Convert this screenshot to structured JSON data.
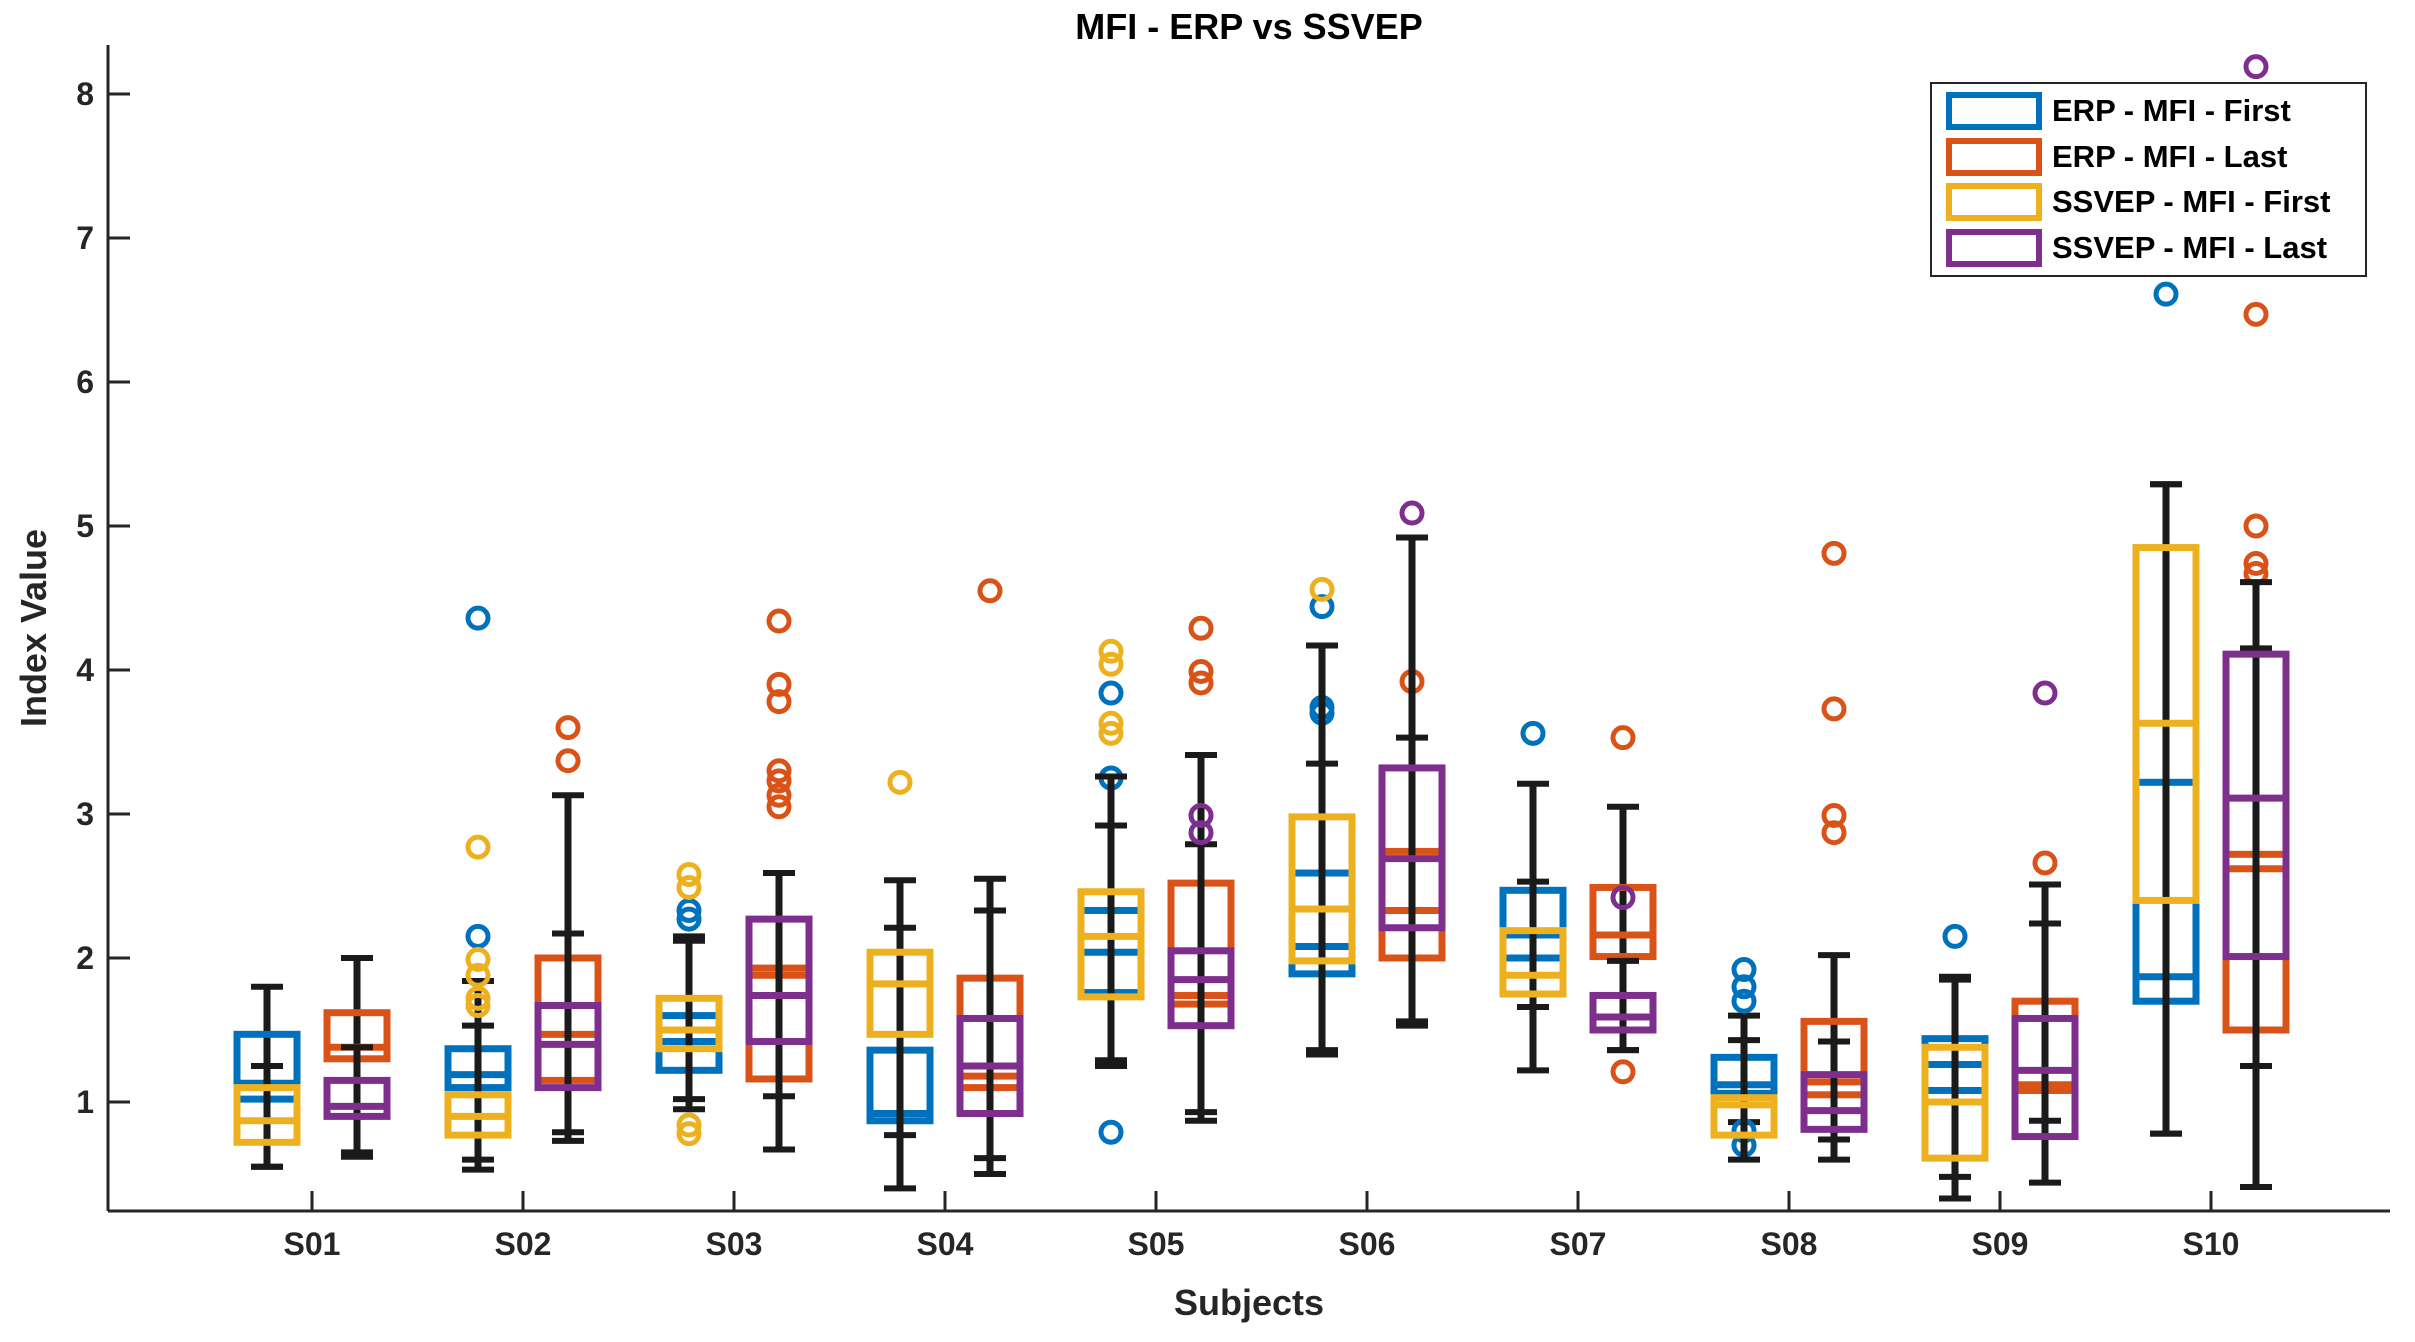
{
  "chart_data": {
    "type": "boxplot",
    "title": "MFI - ERP vs SSVEP",
    "xlabel": "Subjects",
    "ylabel": "Index Value",
    "categories": [
      "S01",
      "S02",
      "S03",
      "S04",
      "S05",
      "S06",
      "S07",
      "S08",
      "S09",
      "S10"
    ],
    "yticks": [
      1,
      2,
      3,
      4,
      5,
      6,
      7,
      8
    ],
    "ylim": [
      0.24,
      8.35
    ],
    "grid": false,
    "legend_position": "top-right",
    "axis_color": "#262626",
    "whisker_color": "#1a1a1a",
    "series": [
      {
        "name": "ERP - MFI - First",
        "color": "#0072BD",
        "position": "first",
        "boxes": [
          [
            0.55,
            1.02,
            1.13,
            1.47,
            1.8,
            []
          ],
          [
            0.6,
            1.1,
            1.19,
            1.37,
            1.84,
            [
              2.15,
              4.36
            ]
          ],
          [
            1.02,
            1.22,
            1.42,
            1.6,
            2.12,
            [
              2.27,
              2.33
            ]
          ],
          [
            0.4,
            0.87,
            0.92,
            1.36,
            2.21,
            []
          ],
          [
            1.29,
            1.76,
            2.04,
            2.33,
            2.92,
            [
              0.79,
              3.25,
              3.84
            ]
          ],
          [
            1.36,
            1.89,
            2.08,
            2.59,
            3.35,
            [
              3.7,
              3.74,
              4.44
            ]
          ],
          [
            1.22,
            2.0,
            2.16,
            2.47,
            3.21,
            [
              3.56
            ]
          ],
          [
            0.86,
            1.06,
            1.12,
            1.31,
            1.6,
            [
              0.7,
              0.8,
              1.7,
              1.8,
              1.92
            ]
          ],
          [
            0.48,
            1.08,
            1.26,
            1.44,
            1.85,
            [
              2.15
            ]
          ],
          [
            0.78,
            1.7,
            1.87,
            3.22,
            5.29,
            [
              6.61
            ]
          ]
        ]
      },
      {
        "name": "ERP - MFI - Last",
        "color": "#D95319",
        "position": "last",
        "boxes": [
          [
            0.62,
            1.3,
            1.38,
            1.62,
            2.0,
            []
          ],
          [
            0.79,
            1.15,
            1.47,
            2.0,
            3.13,
            [
              3.37,
              3.6
            ]
          ],
          [
            1.04,
            1.16,
            1.88,
            1.93,
            2.59,
            [
              3.05,
              3.13,
              3.23,
              3.3,
              3.78,
              3.9,
              4.34
            ]
          ],
          [
            0.5,
            1.1,
            1.18,
            1.86,
            2.55,
            [
              4.55
            ]
          ],
          [
            0.93,
            1.68,
            1.74,
            2.52,
            3.41,
            [
              3.91,
              3.99,
              4.29
            ]
          ],
          [
            1.53,
            2.0,
            2.33,
            2.74,
            3.53,
            [
              3.92
            ]
          ],
          [
            1.36,
            2.01,
            2.16,
            2.49,
            3.05,
            [
              1.21,
              3.53
            ]
          ],
          [
            0.74,
            1.05,
            1.14,
            1.56,
            2.02,
            [
              2.87,
              2.99,
              3.73,
              4.81
            ]
          ],
          [
            0.87,
            1.08,
            1.12,
            1.7,
            2.51,
            [
              2.66
            ]
          ],
          [
            1.25,
            1.5,
            2.62,
            2.72,
            4.15,
            [
              4.67,
              4.74,
              5.0,
              6.47
            ]
          ]
        ]
      },
      {
        "name": "SSVEP - MFI - First",
        "color": "#EDB120",
        "position": "first",
        "boxes": [
          [
            0.55,
            0.72,
            0.87,
            1.1,
            1.25,
            []
          ],
          [
            0.53,
            0.77,
            0.9,
            1.05,
            1.53,
            [
              1.67,
              1.72,
              1.88,
              1.99,
              2.77
            ]
          ],
          [
            0.95,
            1.37,
            1.5,
            1.72,
            2.15,
            [
              0.78,
              0.84,
              2.49,
              2.58
            ]
          ],
          [
            0.77,
            1.47,
            1.82,
            2.04,
            2.54,
            [
              3.22
            ]
          ],
          [
            1.25,
            1.73,
            2.15,
            2.46,
            3.26,
            [
              3.56,
              3.63,
              4.04,
              4.13
            ]
          ],
          [
            1.33,
            1.98,
            2.34,
            2.98,
            4.17,
            [
              4.56
            ]
          ],
          [
            1.66,
            1.75,
            1.88,
            2.19,
            2.53,
            []
          ],
          [
            0.6,
            0.77,
            0.98,
            1.03,
            1.43,
            []
          ],
          [
            0.33,
            0.61,
            1.0,
            1.38,
            1.87,
            []
          ],
          [
            0.78,
            2.4,
            3.63,
            4.85,
            5.29,
            []
          ]
        ]
      },
      {
        "name": "SSVEP - MFI - Last",
        "color": "#7E2F8E",
        "position": "last",
        "boxes": [
          [
            0.65,
            0.9,
            0.97,
            1.15,
            1.38,
            []
          ],
          [
            0.73,
            1.1,
            1.4,
            1.67,
            2.17,
            []
          ],
          [
            0.67,
            1.42,
            1.74,
            2.27,
            2.59,
            []
          ],
          [
            0.61,
            0.92,
            1.25,
            1.58,
            2.33,
            []
          ],
          [
            0.87,
            1.53,
            1.85,
            2.05,
            2.79,
            [
              2.87,
              2.99
            ]
          ],
          [
            1.56,
            2.21,
            2.69,
            3.32,
            4.92,
            [
              5.09
            ]
          ],
          [
            1.36,
            1.5,
            1.59,
            1.74,
            1.98,
            [
              2.42
            ]
          ],
          [
            0.6,
            0.81,
            0.94,
            1.19,
            1.42,
            []
          ],
          [
            0.44,
            0.76,
            1.22,
            1.58,
            2.24,
            [
              3.84
            ]
          ],
          [
            0.41,
            2.01,
            3.11,
            4.11,
            4.61,
            [
              8.19
            ]
          ]
        ]
      }
    ]
  }
}
